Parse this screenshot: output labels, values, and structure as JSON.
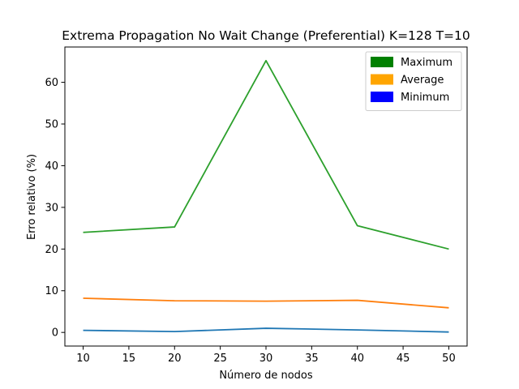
{
  "chart_data": {
    "type": "line",
    "title": "Extrema Propagation No Wait Change (Preferential) K=128 T=10",
    "xlabel": "Número de nodos",
    "ylabel": "Erro relativo (%)",
    "x": [
      10,
      20,
      30,
      40,
      50
    ],
    "xlim": [
      8,
      52
    ],
    "ylim": [
      -3.27,
      68.47
    ],
    "xticks": [
      "10",
      "15",
      "20",
      "25",
      "30",
      "35",
      "40",
      "45",
      "50"
    ],
    "yticks": [
      "0",
      "10",
      "20",
      "30",
      "40",
      "50",
      "60"
    ],
    "series": [
      {
        "line_color": "#2ca02c",
        "values": [
          24.0,
          25.3,
          65.2,
          25.6,
          20.0
        ]
      },
      {
        "line_color": "#ff7f0e",
        "values": [
          8.2,
          7.6,
          7.5,
          7.7,
          5.9
        ]
      },
      {
        "line_color": "#1f77b4",
        "values": [
          0.5,
          0.2,
          1.0,
          0.6,
          0.1
        ]
      }
    ],
    "legend": {
      "placement": "top-right",
      "entries": [
        {
          "label": "Maximum",
          "color": "#008000"
        },
        {
          "label": "Average",
          "color": "#ffa500"
        },
        {
          "label": "Minimum",
          "color": "#0000ff"
        }
      ]
    },
    "grid": false
  }
}
